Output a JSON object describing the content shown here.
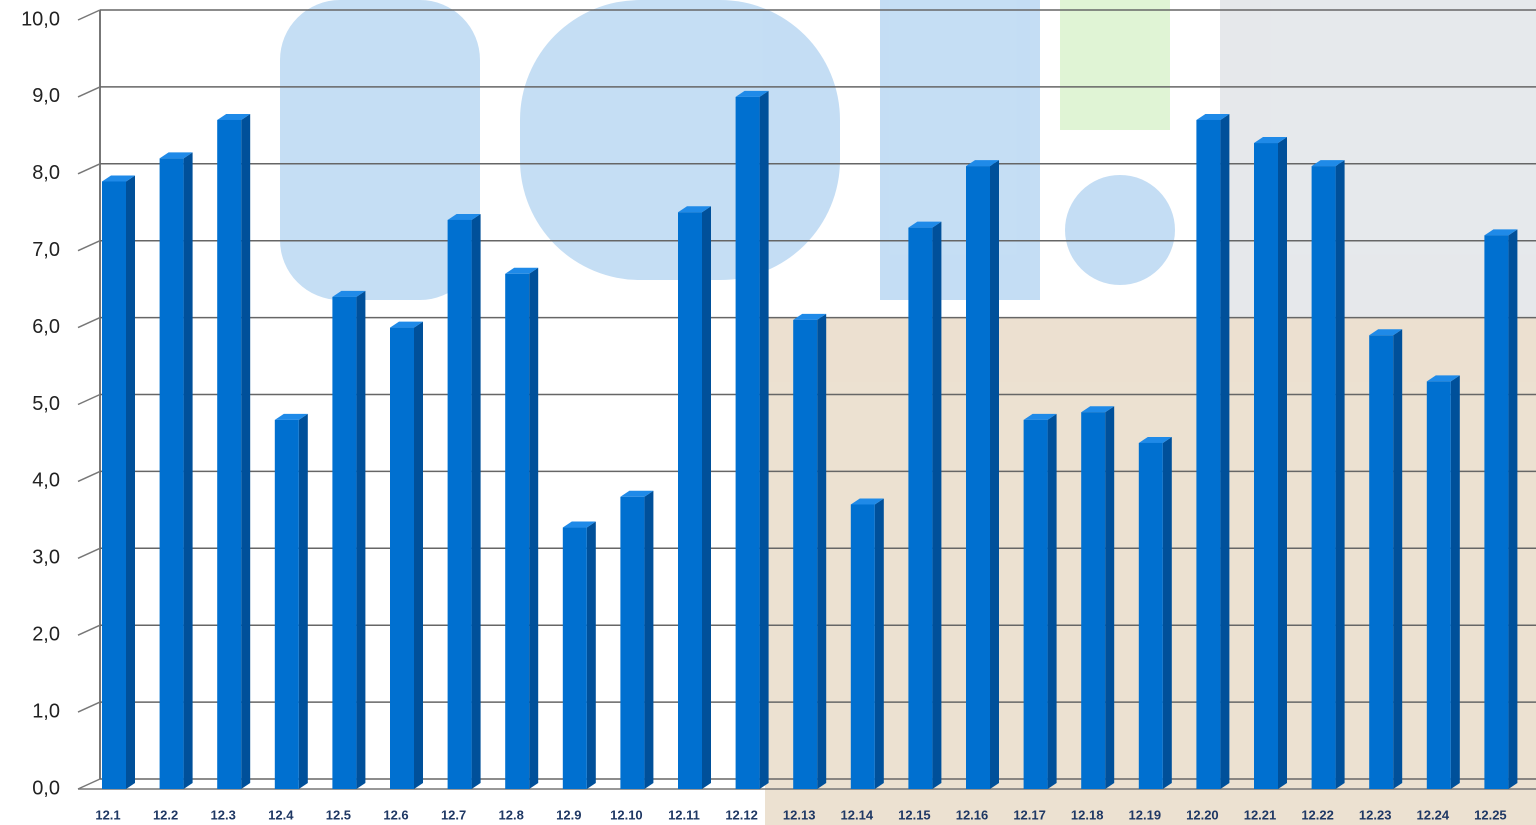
{
  "chart_data": {
    "type": "bar",
    "categories": [
      "12.1",
      "12.2",
      "12.3",
      "12.4",
      "12.5",
      "12.6",
      "12.7",
      "12.8",
      "12.9",
      "12.10",
      "12.11",
      "12.12",
      "12.13",
      "12.14",
      "12.15",
      "12.16",
      "12.17",
      "12.18",
      "12.19",
      "12.20",
      "12.21",
      "12.22",
      "12.23",
      "12.24",
      "12.25"
    ],
    "values": [
      7.9,
      8.2,
      8.7,
      4.8,
      6.4,
      6.0,
      7.4,
      6.7,
      3.4,
      3.8,
      7.5,
      9.0,
      6.1,
      3.7,
      7.3,
      8.1,
      4.8,
      4.9,
      4.5,
      8.7,
      8.4,
      8.1,
      5.9,
      5.3,
      7.2
    ],
    "color": "#0070d0",
    "ylim": [
      0,
      10
    ],
    "yticks": [
      {
        "value": 0,
        "label": "0,0"
      },
      {
        "value": 1,
        "label": "1,0"
      },
      {
        "value": 2,
        "label": "2,0"
      },
      {
        "value": 3,
        "label": "3,0"
      },
      {
        "value": 4,
        "label": "4,0"
      },
      {
        "value": 5,
        "label": "5,0"
      },
      {
        "value": 6,
        "label": "6,0"
      },
      {
        "value": 7,
        "label": "7,0"
      },
      {
        "value": 8,
        "label": "8,0"
      },
      {
        "value": 9,
        "label": "9,0"
      },
      {
        "value": 10,
        "label": "10,0"
      }
    ],
    "grid": true
  }
}
